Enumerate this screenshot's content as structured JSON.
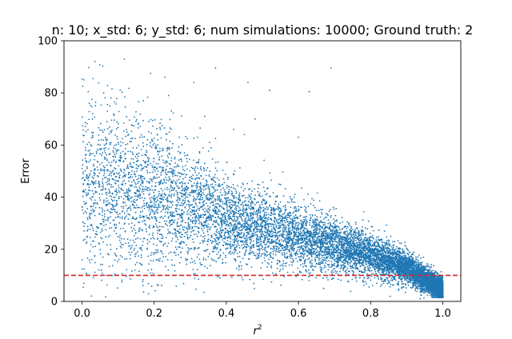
{
  "chart_data": {
    "type": "scatter",
    "title": "n: 10; x_std: 6; y_std: 6; num simulations: 10000; Ground truth: 2",
    "xlabel": "r",
    "xlabel_superscript": "2",
    "ylabel": "Error",
    "xlim": [
      -0.05,
      1.05
    ],
    "ylim": [
      0,
      100
    ],
    "xticks": [
      0.0,
      0.2,
      0.4,
      0.6,
      0.8,
      1.0
    ],
    "xtick_labels": [
      "0.0",
      "0.2",
      "0.4",
      "0.6",
      "0.8",
      "1.0"
    ],
    "yticks": [
      0,
      20,
      40,
      60,
      80,
      100
    ],
    "ytick_labels": [
      "0",
      "20",
      "40",
      "60",
      "80",
      "100"
    ],
    "grid": false,
    "point_color": "#1f77b4",
    "reference_line": {
      "orientation": "horizontal",
      "y": 10,
      "style": "dashed",
      "color": "#d62728"
    },
    "series": [
      {
        "num_points": 10000,
        "trend": [
          {
            "r2": 0.0,
            "error_center": 45,
            "spread": 18
          },
          {
            "r2": 0.2,
            "error_center": 40,
            "spread": 14
          },
          {
            "r2": 0.4,
            "error_center": 31,
            "spread": 8
          },
          {
            "r2": 0.6,
            "error_center": 25,
            "spread": 6
          },
          {
            "r2": 0.8,
            "error_center": 18,
            "spread": 4
          },
          {
            "r2": 0.9,
            "error_center": 13,
            "spread": 3
          },
          {
            "r2": 1.0,
            "error_center": 4,
            "spread": 2
          }
        ],
        "outliers": [
          [
            0.005,
            85
          ],
          [
            0.03,
            72
          ],
          [
            0.02,
            76
          ],
          [
            0.06,
            80
          ],
          [
            0.07,
            73
          ],
          [
            0.08,
            78
          ],
          [
            0.19,
            87.5
          ],
          [
            0.23,
            86
          ],
          [
            0.31,
            84
          ],
          [
            0.37,
            89.5
          ],
          [
            0.46,
            84
          ],
          [
            0.52,
            81
          ],
          [
            0.63,
            80.5
          ],
          [
            0.69,
            89.5
          ],
          [
            0.17,
            77
          ],
          [
            0.24,
            79
          ],
          [
            0.34,
            71
          ],
          [
            0.42,
            66
          ],
          [
            0.48,
            70
          ],
          [
            0.05,
            60
          ],
          [
            0.01,
            59
          ],
          [
            0.21,
            62
          ],
          [
            0.27,
            63
          ],
          [
            0.32,
            63
          ],
          [
            0.37,
            62.5
          ],
          [
            0.45,
            64
          ],
          [
            0.6,
            63
          ],
          [
            0.1,
            61
          ],
          [
            0.015,
            25
          ],
          [
            0.0,
            51
          ],
          [
            0.005,
            42
          ],
          [
            0.012,
            34
          ],
          [
            0.03,
            28
          ],
          [
            0.12,
            27
          ],
          [
            0.22,
            19
          ],
          [
            0.2,
            24
          ]
        ]
      }
    ]
  }
}
